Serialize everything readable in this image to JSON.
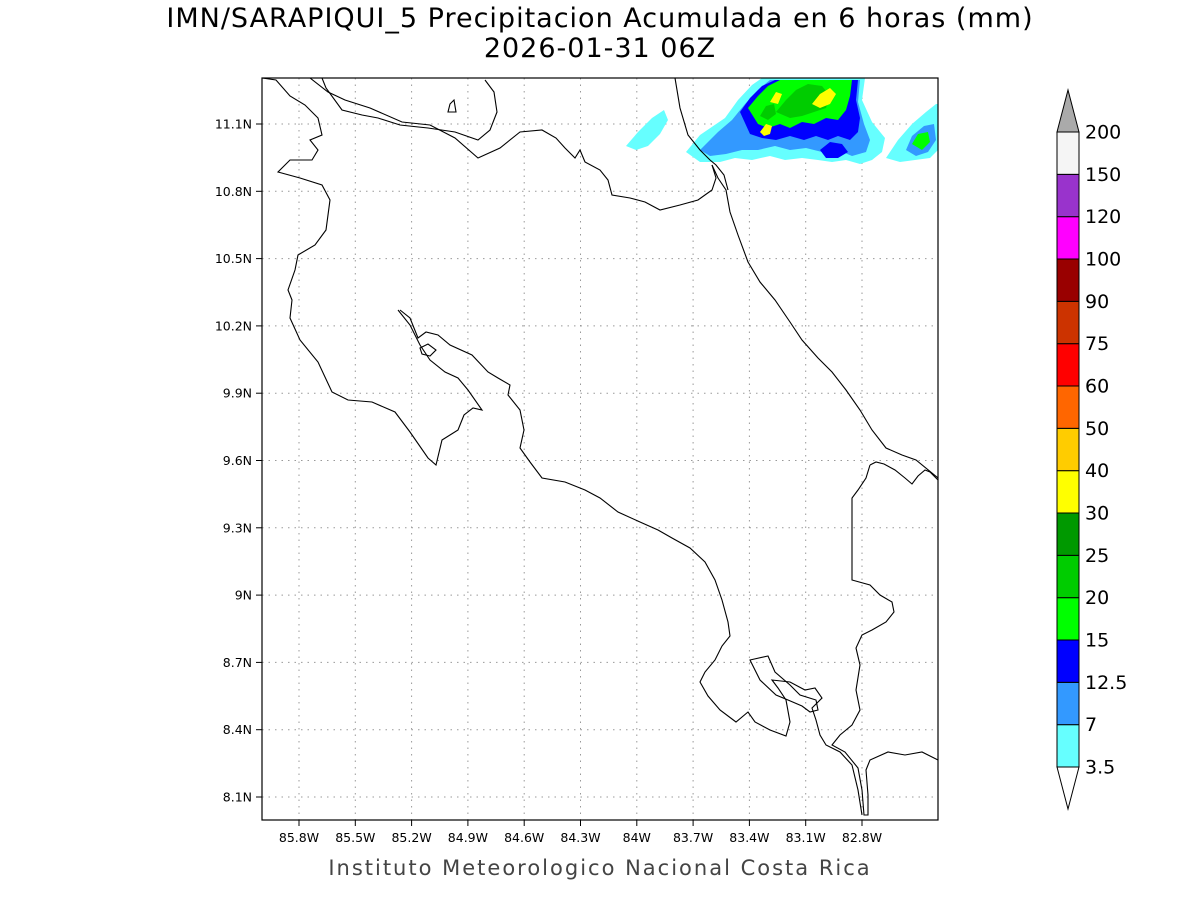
{
  "title": {
    "line1": "IMN/SARAPIQUI_5 Precipitacion Acumulada en 6 horas (mm)",
    "line2": "2026-01-31 06Z"
  },
  "credit": "Instituto Meteorologico Nacional Costa Rica",
  "map": {
    "lon_range": [
      -86.1,
      -82.6
    ],
    "lat_range": [
      8.0,
      11.3
    ],
    "lon_ticks": [
      "85.8W",
      "85.5W",
      "85.2W",
      "84.9W",
      "84.6W",
      "84.3W",
      "84W",
      "83.7W",
      "83.4W",
      "83.1W",
      "82.8W"
    ],
    "lat_ticks": [
      "11.1N",
      "10.8N",
      "10.5N",
      "10.2N",
      "9.9N",
      "9.6N",
      "9.3N",
      "9N",
      "8.7N",
      "8.4N",
      "8.1N"
    ],
    "grid": "dotted"
  },
  "colorbar": {
    "labels": [
      "3.5",
      "7",
      "12.5",
      "15",
      "20",
      "25",
      "30",
      "40",
      "50",
      "60",
      "75",
      "90",
      "100",
      "120",
      "150",
      "200"
    ],
    "colors": [
      "#66ffff",
      "#3399ff",
      "#0000ff",
      "#00ff00",
      "#00cc00",
      "#009900",
      "#ffff00",
      "#ffcc00",
      "#ff6600",
      "#ff0000",
      "#cc3300",
      "#990000",
      "#ff00ff",
      "#9933cc",
      "#f5f5f5"
    ],
    "under_color": "#ffffff",
    "over_color": "#aaaaaa"
  }
}
